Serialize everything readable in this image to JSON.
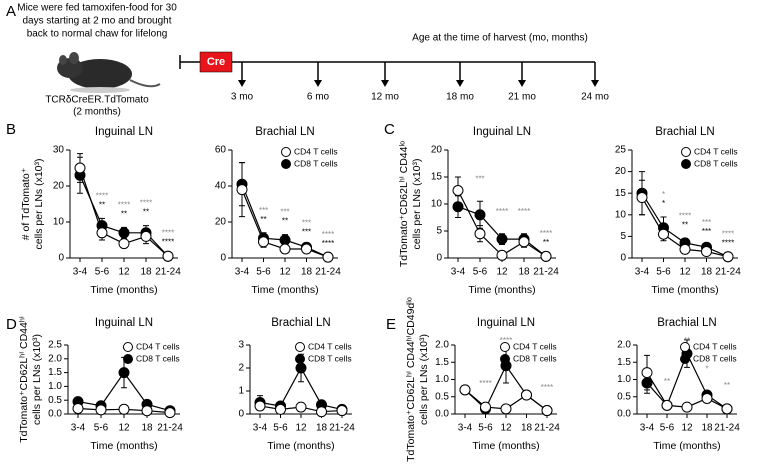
{
  "panel_a": {
    "label": "A",
    "note": [
      "Mice were fed tamoxifen-food for 30",
      "days starting at 2 mo and brought",
      "back to normal chaw for lifelong"
    ],
    "cre": "Cre",
    "harvest_title": "Age at the time of harvest (mo, months)",
    "harvest_ages": [
      "3 mo",
      "6 mo",
      "12 mo",
      "18 mo",
      "21 mo",
      "24 mo"
    ],
    "mouse_label": [
      "TCRδCreER.TdTomato",
      "(2 months)"
    ]
  },
  "chart_data": [
    {
      "type": "line",
      "panel": "B",
      "title": "Inguinal LN",
      "ylabel": [
        "# of TdTomato⁺",
        "cells per LNs (x10³)"
      ],
      "xlabel": "Time (months)",
      "categories": [
        "3-4",
        "5-6",
        "12",
        "18",
        "21-24"
      ],
      "ylim": [
        0,
        30
      ],
      "yticks": [
        0,
        10,
        20,
        30
      ],
      "series": [
        {
          "name": "CD4 T cells",
          "color": "#ffffff",
          "values": [
            25,
            7,
            4,
            6,
            0.5
          ],
          "errors": [
            4,
            2,
            1,
            2,
            0.2
          ],
          "significance": [
            null,
            "****",
            "****",
            "****",
            "****"
          ]
        },
        {
          "name": "CD8 T cells",
          "color": "#000000",
          "values": [
            23,
            9,
            7,
            7,
            0.5
          ],
          "errors": [
            5,
            2,
            1.5,
            2,
            0.2
          ],
          "significance": [
            null,
            "**",
            "**",
            "**",
            "****"
          ]
        }
      ]
    },
    {
      "type": "line",
      "title": "Brachial LN",
      "xlabel": "Time (months)",
      "legend": "upper right",
      "categories": [
        "3-4",
        "5-6",
        "12",
        "18",
        "21-24"
      ],
      "ylim": [
        0,
        60
      ],
      "yticks": [
        0,
        20,
        40,
        60
      ],
      "series": [
        {
          "name": "CD4 T cells",
          "color": "#ffffff",
          "values": [
            38,
            9,
            5,
            5,
            0.5
          ],
          "errors": [
            15,
            3,
            2,
            1,
            0.2
          ],
          "significance": [
            null,
            "***",
            "***",
            "***",
            "****"
          ]
        },
        {
          "name": "CD8 T cells",
          "color": "#000000",
          "values": [
            41,
            11,
            10,
            6,
            0.5
          ],
          "errors": [
            12,
            3,
            3,
            1,
            0.2
          ],
          "significance": [
            null,
            "**",
            "**",
            "***",
            "****"
          ]
        }
      ]
    },
    {
      "type": "line",
      "panel": "C",
      "title": "Inguinal LN",
      "ylabel": [
        "TdTomato⁺CD62Lʰⁱ CD44ˡᵒ",
        "cells per LNs (x10³)"
      ],
      "xlabel": "Time (months)",
      "categories": [
        "3-4",
        "5-6",
        "12",
        "18",
        "21-24"
      ],
      "ylim": [
        0,
        20
      ],
      "yticks": [
        0,
        5,
        10,
        15,
        20
      ],
      "series": [
        {
          "name": "CD4 T cells",
          "color": "#ffffff",
          "values": [
            12.5,
            4.5,
            0.5,
            3,
            0.3
          ],
          "errors": [
            2.5,
            1.5,
            0.3,
            1,
            0.1
          ],
          "significance": [
            null,
            "***",
            "****",
            "****",
            "****"
          ]
        },
        {
          "name": "CD8 T cells",
          "color": "#000000",
          "values": [
            9.5,
            8,
            3.5,
            3.5,
            0.3
          ],
          "errors": [
            2,
            2.5,
            1,
            1,
            0.1
          ],
          "significance": [
            null,
            null,
            null,
            null,
            "**"
          ]
        }
      ]
    },
    {
      "type": "line",
      "title": "Brachial LN",
      "xlabel": "Time (months)",
      "legend": "upper right",
      "categories": [
        "3-4",
        "5-6",
        "12",
        "18",
        "21-24"
      ],
      "ylim": [
        0,
        25
      ],
      "yticks": [
        0,
        5,
        10,
        15,
        20,
        25
      ],
      "series": [
        {
          "name": "CD4 T cells",
          "color": "#ffffff",
          "values": [
            14,
            5.5,
            2,
            1.5,
            0.3
          ],
          "errors": [
            4,
            1.5,
            0.5,
            0.5,
            0.1
          ],
          "significance": [
            null,
            "*",
            "****",
            "***",
            "****"
          ]
        },
        {
          "name": "CD8 T cells",
          "color": "#000000",
          "values": [
            15,
            7,
            3.5,
            2.5,
            0.3
          ],
          "errors": [
            5,
            2.5,
            1,
            0.5,
            0.1
          ],
          "significance": [
            null,
            "*",
            "**",
            "***",
            "****"
          ]
        }
      ]
    },
    {
      "type": "line",
      "panel": "D",
      "title": "Inguinal LN",
      "ylabel": [
        "TdTomato⁺CD62Lʰⁱ CD44ʰⁱ",
        "cells per LNs (x10³)"
      ],
      "xlabel": "Time (months)",
      "legend": "upper right",
      "categories": [
        "3-4",
        "5-6",
        "12",
        "18",
        "21-24"
      ],
      "ylim": [
        0,
        2.5
      ],
      "yticks": [
        {
          "value": 0,
          "label": "0.0"
        },
        0.5,
        {
          "value": 1,
          "label": "1.0"
        },
        1.5,
        {
          "value": 2,
          "label": "2.0"
        },
        2.5
      ],
      "series": [
        {
          "name": "CD4 T cells",
          "color": "#ffffff",
          "values": [
            0.2,
            0.15,
            0.17,
            0.12,
            0.05
          ],
          "errors": [
            0.05,
            0.03,
            0.03,
            0.03,
            0.02
          ],
          "significance": [
            null,
            null,
            null,
            null,
            null
          ]
        },
        {
          "name": "CD8 T cells",
          "color": "#000000",
          "values": [
            0.45,
            0.3,
            1.5,
            0.35,
            0.12
          ],
          "errors": [
            0.05,
            0.05,
            0.55,
            0.05,
            0.03
          ],
          "significance": [
            null,
            null,
            "*",
            null,
            null
          ]
        }
      ]
    },
    {
      "type": "line",
      "title": "Brachial LN",
      "xlabel": "Time (months)",
      "legend": "upper right",
      "categories": [
        "3-4",
        "5-6",
        "12",
        "18",
        "21-24"
      ],
      "ylim": [
        0,
        3
      ],
      "yticks": [
        0,
        1,
        2,
        3
      ],
      "series": [
        {
          "name": "CD4 T cells",
          "color": "#ffffff",
          "values": [
            0.35,
            0.2,
            0.3,
            0.1,
            0.15
          ],
          "errors": [
            0.1,
            0.05,
            0.1,
            0.05,
            0.05
          ],
          "significance": [
            null,
            null,
            null,
            null,
            null
          ]
        },
        {
          "name": "CD8 T cells",
          "color": "#000000",
          "values": [
            0.5,
            0.35,
            2,
            0.4,
            0.2
          ],
          "errors": [
            0.3,
            0.15,
            0.6,
            0.1,
            0.05
          ],
          "significance": [
            null,
            null,
            "**",
            null,
            null
          ]
        }
      ]
    },
    {
      "type": "line",
      "panel": "E",
      "title": "Inguinal LN",
      "ylabel": [
        "TdTomato⁺CD62Lʰⁱ CD44ʰⁱCD49dˡᵒ",
        "cells per LNs (x10³)"
      ],
      "xlabel": "Time (months)",
      "legend": "upper right",
      "categories": [
        "3-4",
        "5-6",
        "12",
        "18",
        "21-24"
      ],
      "ylim": [
        0,
        2
      ],
      "yticks": [
        {
          "value": 0,
          "label": "0.0"
        },
        0.5,
        {
          "value": 1,
          "label": "1.0"
        },
        1.5,
        {
          "value": 2,
          "label": "2.0"
        }
      ],
      "series": [
        {
          "name": "CD4 T cells",
          "color": "#ffffff",
          "values": [
            0.7,
            0.2,
            0.15,
            0.55,
            0.1
          ],
          "errors": [
            0.1,
            0.03,
            0.03,
            0.1,
            0.02
          ],
          "significance": [
            null,
            "****",
            "****",
            null,
            "****"
          ]
        },
        {
          "name": "CD8 T cells",
          "color": "#000000",
          "values": [
            0.7,
            0.15,
            1.4,
            0.55,
            0.1
          ],
          "errors": [
            0.1,
            0.05,
            0.5,
            0.1,
            0.02
          ],
          "significance": [
            null,
            null,
            null,
            null,
            null
          ]
        }
      ]
    },
    {
      "type": "line",
      "title": "Brachial LN",
      "xlabel": "Time (months)",
      "legend": "upper right",
      "categories": [
        "3-4",
        "5-6",
        "12",
        "18",
        "21-24"
      ],
      "ylim": [
        0,
        2
      ],
      "yticks": [
        {
          "value": 0,
          "label": "0.0"
        },
        0.5,
        {
          "value": 1,
          "label": "1.0"
        },
        1.5,
        {
          "value": 2,
          "label": "2.0"
        }
      ],
      "series": [
        {
          "name": "CD4 T cells",
          "color": "#ffffff",
          "values": [
            1.2,
            0.25,
            0.2,
            0.45,
            0.15
          ],
          "errors": [
            0.5,
            0.05,
            0.03,
            0.05,
            0.02
          ],
          "significance": [
            null,
            "**",
            "**",
            "*",
            "**"
          ]
        },
        {
          "name": "CD8 T cells",
          "color": "#000000",
          "values": [
            0.9,
            0.25,
            1.75,
            0.55,
            0.15
          ],
          "errors": [
            0.3,
            0.05,
            0.4,
            0.1,
            0.02
          ],
          "significance": [
            null,
            null,
            null,
            null,
            null
          ]
        }
      ]
    }
  ]
}
